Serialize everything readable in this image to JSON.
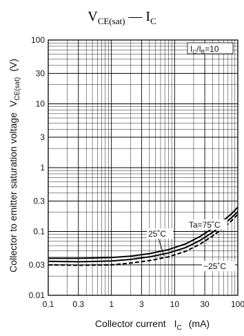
{
  "chart_data": {
    "type": "line",
    "title": "V",
    "title_sub": "CE(sat)",
    "title_rest": " — I",
    "title_rest_sub": "C",
    "xlabel": "Collector current",
    "xlabel_symbol": "I",
    "xlabel_symbol_sub": "C",
    "xlabel_unit": "(mA)",
    "ylabel": "Collector to emitter saturation voltage",
    "ylabel_symbol": "V",
    "ylabel_symbol_sub": "CE(sat)",
    "ylabel_unit": "(V)",
    "x_scale": "log",
    "y_scale": "log",
    "xlim": [
      0.1,
      100
    ],
    "ylim": [
      0.01,
      100
    ],
    "x_ticks": [
      0.1,
      0.3,
      1,
      3,
      10,
      30,
      100
    ],
    "x_tick_labels": [
      "0.1",
      "0.3",
      "1",
      "3",
      "10",
      "30",
      "100"
    ],
    "y_ticks": [
      0.01,
      0.03,
      0.1,
      0.3,
      1,
      3,
      10,
      30,
      100
    ],
    "y_tick_labels": [
      "0.01",
      "0.03",
      "0.1",
      "0.3",
      "1",
      "3",
      "10",
      "30",
      "100"
    ],
    "grid": true,
    "condition": {
      "prefix": "I",
      "sub1": "C",
      "middle": "/I",
      "sub2": "B",
      "suffix": "=10"
    },
    "series": [
      {
        "name": "Ta=75˚C",
        "style": "solid",
        "x": [
          0.1,
          0.3,
          1,
          2,
          4,
          8,
          15,
          25,
          40,
          60,
          80,
          100
        ],
        "y": [
          0.038,
          0.038,
          0.039,
          0.041,
          0.045,
          0.052,
          0.064,
          0.083,
          0.112,
          0.15,
          0.19,
          0.24
        ]
      },
      {
        "name": "25˚C",
        "style": "solid",
        "x": [
          0.1,
          0.3,
          1,
          2,
          4,
          8,
          15,
          25,
          40,
          60,
          80,
          100
        ],
        "y": [
          0.034,
          0.0335,
          0.0345,
          0.0365,
          0.04,
          0.046,
          0.056,
          0.072,
          0.097,
          0.13,
          0.165,
          0.205
        ]
      },
      {
        "name": "−25˚C",
        "style": "dashed",
        "x": [
          0.1,
          0.3,
          1,
          2,
          4,
          8,
          15,
          25,
          40,
          60,
          80,
          100
        ],
        "y": [
          0.03,
          0.0295,
          0.03,
          0.032,
          0.035,
          0.04,
          0.049,
          0.063,
          0.085,
          0.115,
          0.148,
          0.185
        ]
      }
    ]
  }
}
